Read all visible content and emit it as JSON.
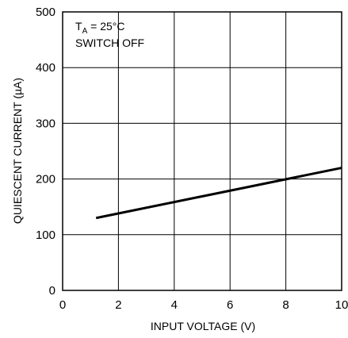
{
  "chart_data": {
    "type": "line",
    "title": "",
    "xlabel": "INPUT VOLTAGE (V)",
    "ylabel": "QUIESCENT CURRENT (µA)",
    "xlim": [
      0,
      10
    ],
    "ylim": [
      0,
      500
    ],
    "x_ticks": [
      "0",
      "2",
      "4",
      "6",
      "8",
      "10"
    ],
    "y_ticks": [
      "0",
      "100",
      "200",
      "300",
      "400",
      "500"
    ],
    "grid": true,
    "annotations": {
      "temp_main": "T",
      "temp_sub": "A",
      "temp_rest": " = 25°C",
      "switch": "SWITCH OFF"
    },
    "series": [
      {
        "x": [
          1.2,
          10
        ],
        "y": [
          130,
          220
        ]
      }
    ]
  }
}
